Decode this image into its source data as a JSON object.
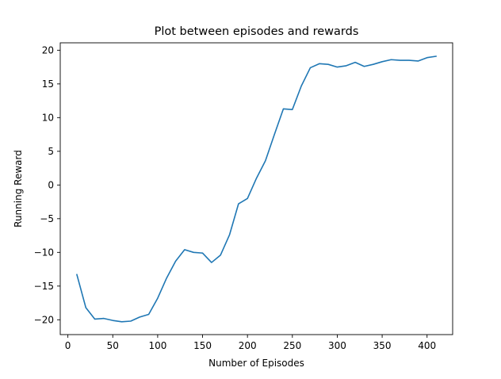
{
  "chart_data": {
    "type": "line",
    "title": "Plot between episodes and rewards",
    "xlabel": "Number of Episodes",
    "ylabel": "Running Reward",
    "xlim": [
      -8.5,
      428.5
    ],
    "ylim": [
      -22.2,
      21.1
    ],
    "xticks": [
      0,
      50,
      100,
      150,
      200,
      250,
      300,
      350,
      400
    ],
    "yticks": [
      -20,
      -15,
      -10,
      -5,
      0,
      5,
      10,
      15,
      20
    ],
    "xtick_labels": [
      "0",
      "50",
      "100",
      "150",
      "200",
      "250",
      "300",
      "350",
      "400"
    ],
    "ytick_labels": [
      "−20",
      "−15",
      "−10",
      "−5",
      "0",
      "5",
      "10",
      "15",
      "20"
    ],
    "grid": false,
    "line_color": "#1f77b4",
    "series": [
      {
        "x": [
          10,
          20,
          30,
          40,
          50,
          60,
          70,
          80,
          90,
          100,
          110,
          120,
          130,
          140,
          150,
          160,
          170,
          180,
          190,
          200,
          210,
          220,
          230,
          240,
          250,
          260,
          270,
          280,
          290,
          300,
          310,
          320,
          330,
          340,
          350,
          360,
          370,
          380,
          390,
          400,
          410
        ],
        "y": [
          -13.3,
          -18.2,
          -19.9,
          -19.8,
          -20.1,
          -20.3,
          -20.2,
          -19.6,
          -19.2,
          -16.8,
          -13.8,
          -11.3,
          -9.6,
          -10.0,
          -10.1,
          -11.5,
          -10.4,
          -7.4,
          -2.8,
          -2.0,
          1.0,
          3.6,
          7.5,
          11.3,
          11.2,
          14.7,
          17.4,
          18.0,
          17.9,
          17.5,
          17.7,
          18.2,
          17.6,
          17.9,
          18.3,
          18.6,
          18.5,
          18.5,
          18.4,
          18.9,
          19.1
        ]
      }
    ]
  }
}
